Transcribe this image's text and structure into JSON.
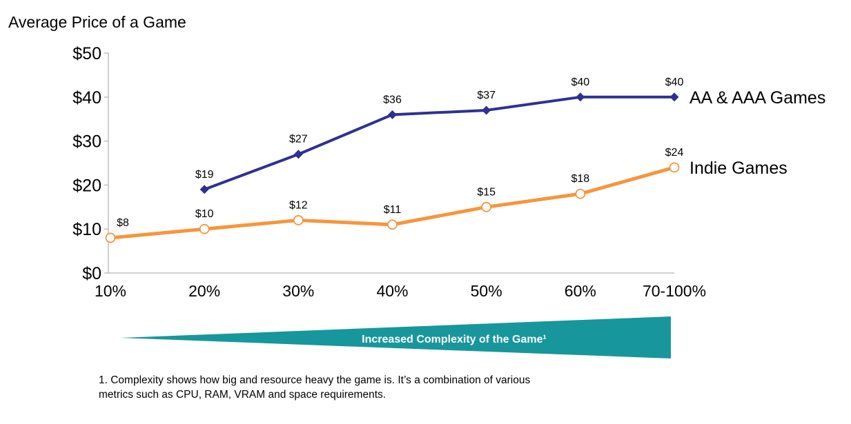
{
  "colors": {
    "aa_aaa": "#2e3191",
    "indie": "#f7953b",
    "banner": "#17979c",
    "axis": "#bfbfbf"
  },
  "banner_label": "Increased Complexity of the Game¹",
  "footnote": {
    "line1": "1. Complexity shows how big and resource heavy the game is. It’s a combination of various",
    "line2": "metrics such as CPU, RAM, VRAM and space requirements."
  },
  "chart_data": {
    "type": "line",
    "title": "Average Price of a Game",
    "categories": [
      "10%",
      "20%",
      "30%",
      "40%",
      "50%",
      "60%",
      "70-100%"
    ],
    "ylim": [
      0,
      50
    ],
    "yticks": [
      "$0",
      "$10",
      "$20",
      "$30",
      "$40",
      "$50"
    ],
    "xlabel": "",
    "ylabel": "",
    "grid": false,
    "series": [
      {
        "name": "AA & AAA Games",
        "values": [
          null,
          19,
          27,
          36,
          37,
          40,
          40
        ],
        "labels": [
          "",
          "$19",
          "$27",
          "$36",
          "$37",
          "$40",
          "$40"
        ],
        "marker": "diamond"
      },
      {
        "name": "Indie Games",
        "values": [
          8,
          10,
          12,
          11,
          15,
          18,
          24
        ],
        "labels": [
          "$8",
          "$10",
          "$12",
          "$11",
          "$15",
          "$18",
          "$24"
        ],
        "marker": "circle-open"
      }
    ]
  }
}
